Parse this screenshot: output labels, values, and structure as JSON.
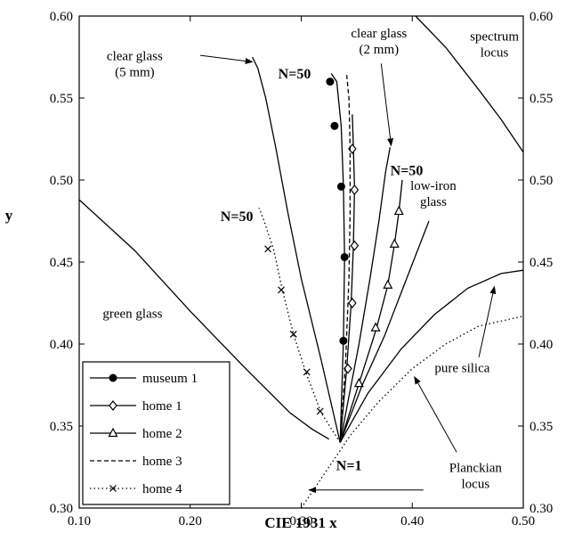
{
  "chart_data": {
    "type": "line",
    "xlabel": "CIE 1931 x",
    "ylabel": "y",
    "xlim": [
      0.1,
      0.5
    ],
    "ylim": [
      0.3,
      0.6
    ],
    "x_ticks": [
      "0.10",
      "0.20",
      "0.30",
      "0.40",
      "0.50"
    ],
    "y_ticks": [
      "0.30",
      "0.35",
      "0.40",
      "0.45",
      "0.50",
      "0.55",
      "0.60"
    ],
    "grid": false,
    "legend_position": "bottom-left",
    "series": [
      {
        "name": "museum 1",
        "marker": "filled-circle",
        "dash": "solid",
        "x": [
          0.335,
          0.338,
          0.339,
          0.338,
          0.336,
          0.332,
          0.327
        ],
        "y": [
          0.34,
          0.402,
          0.453,
          0.496,
          0.533,
          0.56,
          0.565
        ],
        "marker_points": [
          [
            0.338,
            0.402
          ],
          [
            0.339,
            0.453
          ],
          [
            0.336,
            0.496
          ],
          [
            0.33,
            0.533
          ],
          [
            0.326,
            0.56
          ]
        ]
      },
      {
        "name": "home 1",
        "marker": "open-diamond",
        "dash": "solid",
        "x": [
          0.335,
          0.341,
          0.345,
          0.347,
          0.348,
          0.347,
          0.346
        ],
        "y": [
          0.34,
          0.385,
          0.425,
          0.46,
          0.495,
          0.52,
          0.54
        ],
        "marker_points": [
          [
            0.342,
            0.385
          ],
          [
            0.346,
            0.425
          ],
          [
            0.348,
            0.46
          ],
          [
            0.348,
            0.494
          ],
          [
            0.346,
            0.519
          ]
        ]
      },
      {
        "name": "home 2",
        "marker": "open-triangle",
        "dash": "solid",
        "x": [
          0.335,
          0.352,
          0.368,
          0.378,
          0.384,
          0.388,
          0.391
        ],
        "y": [
          0.34,
          0.376,
          0.41,
          0.436,
          0.461,
          0.481,
          0.5
        ],
        "marker_points": [
          [
            0.352,
            0.376
          ],
          [
            0.367,
            0.41
          ],
          [
            0.378,
            0.436
          ],
          [
            0.384,
            0.461
          ],
          [
            0.388,
            0.481
          ]
        ]
      },
      {
        "name": "home 3",
        "marker": "none",
        "dash": "dashed",
        "x": [
          0.335,
          0.34,
          0.343,
          0.344,
          0.344,
          0.343,
          0.341
        ],
        "y": [
          0.34,
          0.39,
          0.44,
          0.48,
          0.52,
          0.55,
          0.564
        ],
        "marker_points": []
      },
      {
        "name": "home 4",
        "marker": "cross",
        "dash": "dotted",
        "x": [
          0.335,
          0.318,
          0.304,
          0.293,
          0.283,
          0.275,
          0.266,
          0.262
        ],
        "y": [
          0.34,
          0.358,
          0.383,
          0.406,
          0.433,
          0.458,
          0.476,
          0.483
        ],
        "marker_points": [
          [
            0.317,
            0.359
          ],
          [
            0.305,
            0.383
          ],
          [
            0.293,
            0.406
          ],
          [
            0.282,
            0.433
          ],
          [
            0.27,
            0.458
          ]
        ]
      },
      {
        "name": "",
        "marker": "none",
        "dash": "solid",
        "x": [
          0.335,
          0.318,
          0.3,
          0.288,
          0.277,
          0.268,
          0.261,
          0.256
        ],
        "y": [
          0.34,
          0.39,
          0.44,
          0.48,
          0.52,
          0.55,
          0.568,
          0.575
        ],
        "marker_points": []
      },
      {
        "name": "",
        "marker": "none",
        "dash": "solid",
        "x": [
          0.335,
          0.352,
          0.362,
          0.37,
          0.376,
          0.38
        ],
        "y": [
          0.34,
          0.4,
          0.44,
          0.475,
          0.505,
          0.52
        ],
        "marker_points": []
      },
      {
        "name": "",
        "marker": "none",
        "dash": "solid",
        "x": [
          0.335,
          0.355,
          0.375,
          0.395,
          0.415
        ],
        "y": [
          0.34,
          0.375,
          0.405,
          0.44,
          0.475
        ],
        "marker_points": []
      },
      {
        "name": "",
        "marker": "none",
        "dash": "solid",
        "x": [
          0.1,
          0.15,
          0.2,
          0.25,
          0.29,
          0.31,
          0.325
        ],
        "y": [
          0.488,
          0.457,
          0.42,
          0.385,
          0.358,
          0.348,
          0.342
        ],
        "marker_points": []
      },
      {
        "name": "",
        "marker": "none",
        "dash": "solid",
        "x": [
          0.335,
          0.36,
          0.39,
          0.42,
          0.45,
          0.48,
          0.5
        ],
        "y": [
          0.34,
          0.37,
          0.397,
          0.418,
          0.434,
          0.443,
          0.445
        ],
        "marker_points": []
      },
      {
        "name": "",
        "marker": "none",
        "dash": "dotted",
        "x": [
          0.3,
          0.32,
          0.345,
          0.37,
          0.4,
          0.43,
          0.46,
          0.5
        ],
        "y": [
          0.3,
          0.32,
          0.345,
          0.365,
          0.385,
          0.4,
          0.411,
          0.417
        ],
        "marker_points": []
      },
      {
        "name": "",
        "marker": "none",
        "dash": "solid",
        "x": [
          0.403,
          0.43,
          0.46,
          0.48,
          0.5
        ],
        "y": [
          0.6,
          0.581,
          0.555,
          0.537,
          0.517
        ],
        "marker_points": []
      }
    ],
    "annotations": [
      {
        "lines": [
          "clear glass",
          "(5 mm)"
        ],
        "x": 0.15,
        "y": 0.573,
        "anchor": "middle",
        "style": "anno",
        "arrow": {
          "from": [
            0.209,
            0.576
          ],
          "to": [
            0.256,
            0.572
          ]
        }
      },
      {
        "lines": [
          "clear glass",
          "(2 mm)"
        ],
        "x": 0.37,
        "y": 0.587,
        "anchor": "middle",
        "style": "anno",
        "arrow": {
          "from": [
            0.372,
            0.571
          ],
          "to": [
            0.381,
            0.521
          ]
        }
      },
      {
        "lines": [
          "spectrum",
          "locus"
        ],
        "x": 0.474,
        "y": 0.585,
        "anchor": "middle",
        "style": "anno",
        "arrow": null
      },
      {
        "lines": [
          "low-iron",
          "glass"
        ],
        "x": 0.419,
        "y": 0.494,
        "anchor": "middle",
        "style": "anno",
        "arrow": null
      },
      {
        "lines": [
          "green glass"
        ],
        "x": 0.148,
        "y": 0.416,
        "anchor": "middle",
        "style": "anno",
        "arrow": null
      },
      {
        "lines": [
          "pure silica"
        ],
        "x": 0.445,
        "y": 0.383,
        "anchor": "middle",
        "style": "anno",
        "arrow": {
          "from": [
            0.46,
            0.392
          ],
          "to": [
            0.474,
            0.435
          ]
        }
      },
      {
        "lines": [
          "Planckian",
          "locus"
        ],
        "x": 0.457,
        "y": 0.322,
        "anchor": "middle",
        "style": "anno",
        "arrow": {
          "from": [
            0.44,
            0.334
          ],
          "to": [
            0.402,
            0.38
          ]
        }
      },
      {
        "lines": [],
        "x": 0,
        "y": 0,
        "anchor": "middle",
        "style": "anno",
        "arrow": {
          "from": [
            0.41,
            0.311
          ],
          "to": [
            0.307,
            0.311
          ]
        }
      },
      {
        "lines": [
          "N=50"
        ],
        "x": 0.294,
        "y": 0.562,
        "anchor": "middle",
        "style": "nlab",
        "arrow": null
      },
      {
        "lines": [
          "N=50"
        ],
        "x": 0.395,
        "y": 0.503,
        "anchor": "middle",
        "style": "nlab",
        "arrow": null
      },
      {
        "lines": [
          "N=50"
        ],
        "x": 0.242,
        "y": 0.475,
        "anchor": "middle",
        "style": "nlab",
        "arrow": null
      },
      {
        "lines": [
          "N=1"
        ],
        "x": 0.343,
        "y": 0.323,
        "anchor": "middle",
        "style": "nlab",
        "arrow": null
      }
    ]
  }
}
